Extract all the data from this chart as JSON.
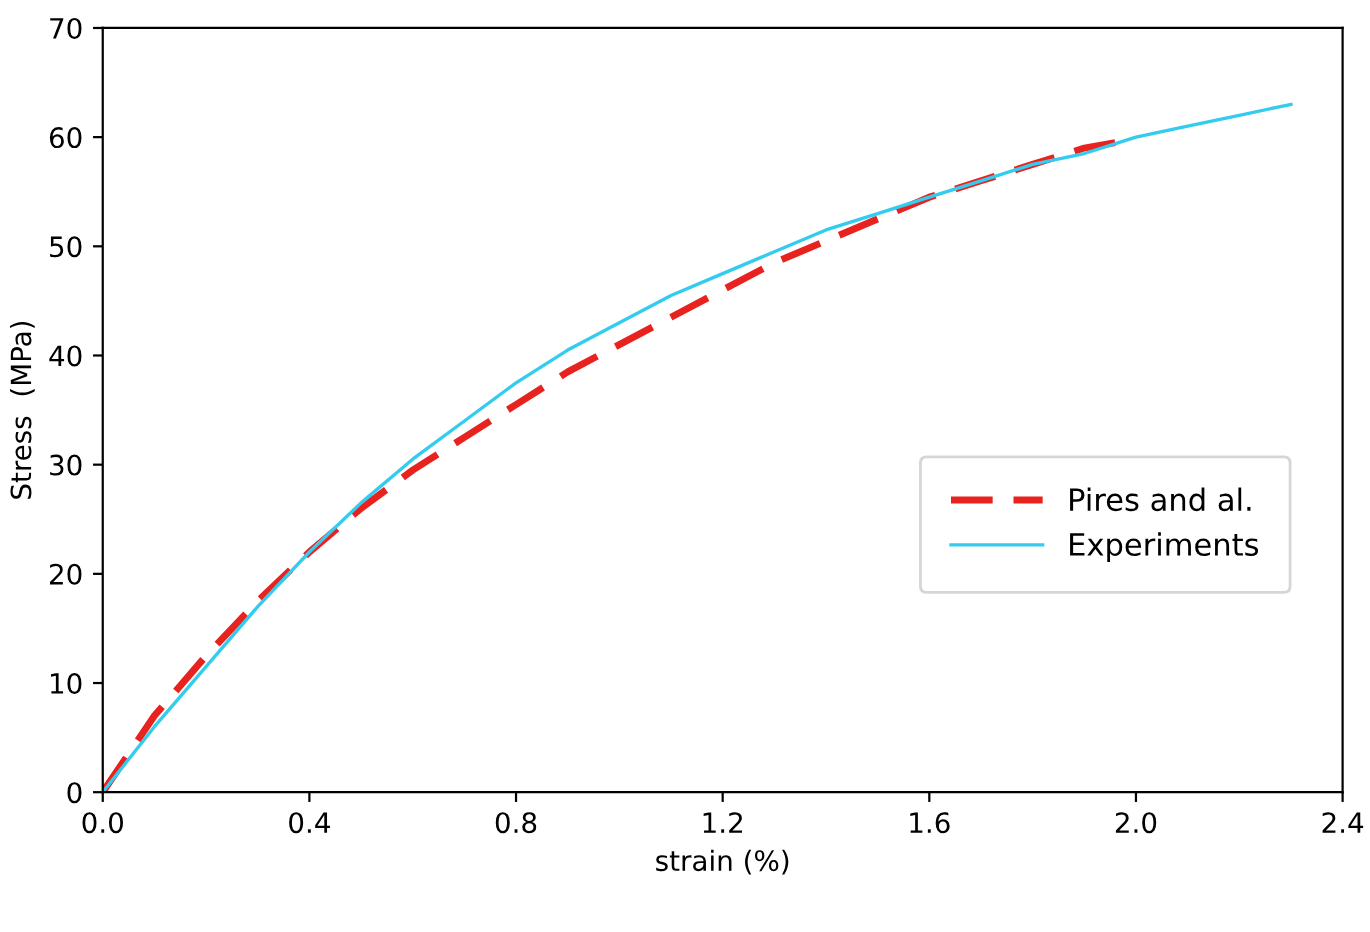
{
  "chart_data": {
    "type": "line",
    "xlabel": "strain (%)",
    "ylabel": "Stress  (MPa)",
    "xlim": [
      0,
      2.4
    ],
    "ylim": [
      0,
      70
    ],
    "xticks": [
      {
        "value": 0,
        "label": "0.0"
      },
      {
        "value": 0.4,
        "label": "0.4"
      },
      {
        "value": 0.8,
        "label": "0.8"
      },
      {
        "value": 1.2,
        "label": "1.2"
      },
      {
        "value": 1.6,
        "label": "1.6"
      },
      {
        "value": 2.0,
        "label": "2.0"
      },
      {
        "value": 2.4,
        "label": "2.4"
      }
    ],
    "yticks": [
      0,
      10,
      20,
      30,
      40,
      50,
      60,
      70
    ],
    "legend": "right",
    "grid": false,
    "series": [
      {
        "name": "Pires and al.",
        "color": "#e8231f",
        "line_style": "dashed",
        "x": [
          0,
          0.1,
          0.2,
          0.3,
          0.4,
          0.5,
          0.6,
          0.7,
          0.8,
          0.9,
          1.0,
          1.1,
          1.2,
          1.3,
          1.4,
          1.5,
          1.6,
          1.7,
          1.8,
          1.9,
          1.96
        ],
        "values": [
          0,
          7,
          12.5,
          17.5,
          22,
          26,
          29.5,
          32.5,
          35.5,
          38.5,
          41,
          43.5,
          46,
          48.5,
          50.5,
          52.5,
          54.5,
          56,
          57.5,
          59,
          59.5
        ]
      },
      {
        "name": "Experiments",
        "color": "#33ccee",
        "line_style": "solid",
        "x": [
          0,
          0.1,
          0.2,
          0.3,
          0.4,
          0.5,
          0.6,
          0.7,
          0.8,
          0.9,
          1.0,
          1.1,
          1.2,
          1.3,
          1.4,
          1.5,
          1.6,
          1.7,
          1.8,
          1.9,
          2.0,
          2.1,
          2.2,
          2.3
        ],
        "values": [
          0,
          6,
          11.5,
          17,
          22,
          26.5,
          30.5,
          34,
          37.5,
          40.5,
          43,
          45.5,
          47.5,
          49.5,
          51.5,
          53,
          54.5,
          56,
          57.5,
          58.5,
          60,
          61,
          62,
          63
        ]
      }
    ]
  }
}
